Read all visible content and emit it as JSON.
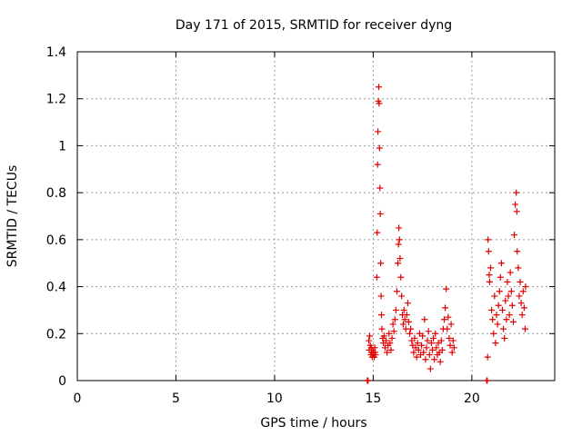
{
  "chart_data": {
    "type": "scatter",
    "title": "Day 171 of 2015, SRMTID for receiver dyng",
    "xlabel": "GPS time / hours",
    "ylabel": "SRMTID / TECUs",
    "xlim": [
      0,
      24.2
    ],
    "ylim": [
      0,
      1.4
    ],
    "xticks": [
      0,
      5,
      10,
      15,
      20
    ],
    "yticks": [
      0,
      0.2,
      0.4,
      0.6,
      0.8,
      1,
      1.2,
      1.4
    ],
    "ytick_labels": [
      "0",
      "0.2",
      "0.4",
      "0.6",
      "0.8",
      "1",
      "1.2",
      "1.4"
    ],
    "grid": true,
    "marker": "+",
    "color": "#e00000",
    "series": [
      {
        "points": [
          [
            14.7,
            0.0
          ],
          [
            14.72,
            0.0
          ],
          [
            14.74,
            0.0
          ],
          [
            14.78,
            0.17
          ],
          [
            14.8,
            0.13
          ],
          [
            14.82,
            0.19
          ],
          [
            14.85,
            0.15
          ],
          [
            14.88,
            0.11
          ],
          [
            14.9,
            0.14
          ],
          [
            14.92,
            0.12
          ],
          [
            14.95,
            0.1
          ],
          [
            14.98,
            0.13
          ],
          [
            15.0,
            0.11
          ],
          [
            15.02,
            0.12
          ],
          [
            15.05,
            0.1
          ],
          [
            15.08,
            0.14
          ],
          [
            15.1,
            0.12
          ],
          [
            15.12,
            0.11
          ],
          [
            15.18,
            0.44
          ],
          [
            15.2,
            0.63
          ],
          [
            15.22,
            0.92
          ],
          [
            15.24,
            1.06
          ],
          [
            15.26,
            1.19
          ],
          [
            15.28,
            1.25
          ],
          [
            15.3,
            1.18
          ],
          [
            15.32,
            0.99
          ],
          [
            15.34,
            0.82
          ],
          [
            15.36,
            0.71
          ],
          [
            15.38,
            0.5
          ],
          [
            15.4,
            0.36
          ],
          [
            15.42,
            0.28
          ],
          [
            15.44,
            0.22
          ],
          [
            15.48,
            0.18
          ],
          [
            15.52,
            0.16
          ],
          [
            15.55,
            0.19
          ],
          [
            15.6,
            0.14
          ],
          [
            15.65,
            0.17
          ],
          [
            15.7,
            0.12
          ],
          [
            15.75,
            0.15
          ],
          [
            15.8,
            0.2
          ],
          [
            15.85,
            0.16
          ],
          [
            15.9,
            0.13
          ],
          [
            15.95,
            0.18
          ],
          [
            16.0,
            0.24
          ],
          [
            16.05,
            0.21
          ],
          [
            16.1,
            0.26
          ],
          [
            16.15,
            0.3
          ],
          [
            16.2,
            0.38
          ],
          [
            16.25,
            0.5
          ],
          [
            16.28,
            0.58
          ],
          [
            16.3,
            0.65
          ],
          [
            16.33,
            0.6
          ],
          [
            16.36,
            0.52
          ],
          [
            16.4,
            0.44
          ],
          [
            16.44,
            0.36
          ],
          [
            16.48,
            0.28
          ],
          [
            16.52,
            0.24
          ],
          [
            16.56,
            0.3
          ],
          [
            16.6,
            0.26
          ],
          [
            16.65,
            0.22
          ],
          [
            16.7,
            0.28
          ],
          [
            16.75,
            0.33
          ],
          [
            16.8,
            0.25
          ],
          [
            16.85,
            0.2
          ],
          [
            16.9,
            0.22
          ],
          [
            16.95,
            0.17
          ],
          [
            17.0,
            0.15
          ],
          [
            17.05,
            0.12
          ],
          [
            17.1,
            0.18
          ],
          [
            17.15,
            0.14
          ],
          [
            17.2,
            0.1
          ],
          [
            17.25,
            0.16
          ],
          [
            17.3,
            0.13
          ],
          [
            17.35,
            0.2
          ],
          [
            17.4,
            0.11
          ],
          [
            17.45,
            0.15
          ],
          [
            17.5,
            0.19
          ],
          [
            17.55,
            0.12
          ],
          [
            17.6,
            0.26
          ],
          [
            17.65,
            0.09
          ],
          [
            17.7,
            0.14
          ],
          [
            17.75,
            0.17
          ],
          [
            17.8,
            0.21
          ],
          [
            17.85,
            0.11
          ],
          [
            17.9,
            0.05
          ],
          [
            17.95,
            0.16
          ],
          [
            18.0,
            0.13
          ],
          [
            18.05,
            0.18
          ],
          [
            18.1,
            0.09
          ],
          [
            18.15,
            0.2
          ],
          [
            18.2,
            0.14
          ],
          [
            18.25,
            0.11
          ],
          [
            18.3,
            0.16
          ],
          [
            18.35,
            0.12
          ],
          [
            18.4,
            0.08
          ],
          [
            18.45,
            0.17
          ],
          [
            18.5,
            0.13
          ],
          [
            18.55,
            0.22
          ],
          [
            18.6,
            0.26
          ],
          [
            18.65,
            0.31
          ],
          [
            18.7,
            0.39
          ],
          [
            18.75,
            0.22
          ],
          [
            18.8,
            0.27
          ],
          [
            18.85,
            0.18
          ],
          [
            18.9,
            0.15
          ],
          [
            18.95,
            0.24
          ],
          [
            19.0,
            0.12
          ],
          [
            19.05,
            0.17
          ],
          [
            19.1,
            0.14
          ],
          [
            20.75,
            0.0
          ],
          [
            20.78,
            0.0
          ],
          [
            20.8,
            0.1
          ],
          [
            20.82,
            0.6
          ],
          [
            20.85,
            0.55
          ],
          [
            20.88,
            0.45
          ],
          [
            20.9,
            0.42
          ],
          [
            20.95,
            0.48
          ],
          [
            21.0,
            0.3
          ],
          [
            21.05,
            0.26
          ],
          [
            21.1,
            0.2
          ],
          [
            21.15,
            0.36
          ],
          [
            21.2,
            0.16
          ],
          [
            21.25,
            0.28
          ],
          [
            21.3,
            0.24
          ],
          [
            21.35,
            0.32
          ],
          [
            21.4,
            0.38
          ],
          [
            21.45,
            0.44
          ],
          [
            21.5,
            0.5
          ],
          [
            21.55,
            0.3
          ],
          [
            21.6,
            0.22
          ],
          [
            21.65,
            0.18
          ],
          [
            21.7,
            0.34
          ],
          [
            21.75,
            0.26
          ],
          [
            21.8,
            0.42
          ],
          [
            21.85,
            0.36
          ],
          [
            21.9,
            0.28
          ],
          [
            21.95,
            0.46
          ],
          [
            22.0,
            0.38
          ],
          [
            22.05,
            0.32
          ],
          [
            22.1,
            0.25
          ],
          [
            22.15,
            0.62
          ],
          [
            22.2,
            0.75
          ],
          [
            22.25,
            0.8
          ],
          [
            22.28,
            0.72
          ],
          [
            22.3,
            0.55
          ],
          [
            22.35,
            0.48
          ],
          [
            22.4,
            0.36
          ],
          [
            22.45,
            0.42
          ],
          [
            22.5,
            0.33
          ],
          [
            22.55,
            0.28
          ],
          [
            22.6,
            0.38
          ],
          [
            22.65,
            0.31
          ],
          [
            22.7,
            0.22
          ],
          [
            22.72,
            0.4
          ]
        ]
      }
    ]
  }
}
